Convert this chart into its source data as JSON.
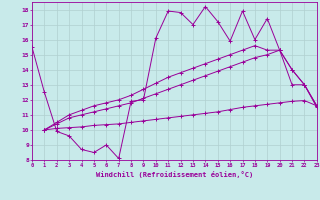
{
  "xlabel": "Windchill (Refroidissement éolien,°C)",
  "background_color": "#c8eaea",
  "line_color": "#990099",
  "grid_color": "#b0d0d0",
  "xlim": [
    0,
    23
  ],
  "ylim": [
    8,
    18.5
  ],
  "xticks": [
    0,
    1,
    2,
    3,
    4,
    5,
    6,
    7,
    8,
    9,
    10,
    11,
    12,
    13,
    14,
    15,
    16,
    17,
    18,
    19,
    20,
    21,
    22,
    23
  ],
  "yticks": [
    8,
    9,
    10,
    11,
    12,
    13,
    14,
    15,
    16,
    17,
    18
  ],
  "series": [
    [
      15.5,
      12.5,
      9.9,
      9.6,
      8.7,
      8.5,
      9.0,
      8.1,
      11.9,
      12.0,
      16.1,
      17.9,
      17.8,
      17.0,
      18.2,
      17.2,
      15.9,
      17.9,
      16.0,
      17.4,
      15.3,
      14.0,
      13.0,
      11.5
    ],
    [
      null,
      10.0,
      10.1,
      10.15,
      10.2,
      10.3,
      10.35,
      10.4,
      10.5,
      10.6,
      10.7,
      10.8,
      10.9,
      11.0,
      11.1,
      11.2,
      11.35,
      11.5,
      11.6,
      11.7,
      11.8,
      11.9,
      11.95,
      11.6
    ],
    [
      null,
      10.0,
      10.4,
      10.8,
      11.0,
      11.2,
      11.4,
      11.6,
      11.8,
      12.1,
      12.4,
      12.7,
      13.0,
      13.3,
      13.6,
      13.9,
      14.2,
      14.5,
      14.8,
      15.0,
      15.3,
      13.0,
      13.0,
      11.6
    ],
    [
      null,
      10.0,
      10.5,
      11.0,
      11.3,
      11.6,
      11.8,
      12.0,
      12.3,
      12.7,
      13.1,
      13.5,
      13.8,
      14.1,
      14.4,
      14.7,
      15.0,
      15.3,
      15.6,
      15.3,
      15.3,
      14.0,
      13.0,
      11.6
    ]
  ]
}
